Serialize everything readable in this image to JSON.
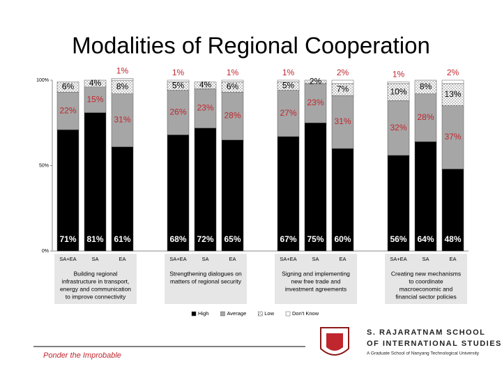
{
  "chart_data": {
    "type": "stacked_bar",
    "title": "Modalities of Regional Cooperation",
    "categories": [
      "SA+EA",
      "SA",
      "EA",
      "SA+EA",
      "SA",
      "EA",
      "SA+EA",
      "SA",
      "EA",
      "SA+EA",
      "SA",
      "EA"
    ],
    "groups": [
      [
        "Building regional",
        "infrastructure in transport,",
        "energy and communication",
        "to improve connectivity"
      ],
      [
        "Strengthening dialogues on",
        "matters of regional security"
      ],
      [
        "Signing and implementing",
        "new free trade and",
        "investment agreements"
      ],
      [
        "Creating new mechanisms",
        "to coordinate",
        "macroeconomic and",
        "financial sector policies"
      ]
    ],
    "series": [
      {
        "name": "High",
        "color": "#000000",
        "label_color": "#ffffff",
        "values": [
          71,
          81,
          61,
          68,
          72,
          65,
          67,
          75,
          60,
          56,
          64,
          48
        ],
        "value_labels": [
          "71%",
          "81%",
          "61%",
          "68%",
          "72%",
          "65%",
          "67%",
          "75%",
          "60%",
          "56%",
          "64%",
          "48%"
        ]
      },
      {
        "name": "Average",
        "color": "#a6a6a6",
        "label_color": "#c0262d",
        "values": [
          22,
          15,
          31,
          26,
          23,
          28,
          27,
          23,
          31,
          32,
          28,
          37
        ],
        "value_labels": [
          "22%",
          "15%",
          "31%",
          "26%",
          "23%",
          "28%",
          "27%",
          "23%",
          "31%",
          "32%",
          "28%",
          "37%"
        ]
      },
      {
        "name": "Low",
        "color": "#ffffff",
        "pattern": "dots",
        "label_color": "#000000",
        "values": [
          6,
          4,
          8,
          5,
          4,
          6,
          5,
          2,
          7,
          10,
          8,
          13
        ],
        "value_labels": [
          "6%",
          "4%",
          "8%",
          "5%",
          "4%",
          "6%",
          "5%",
          "2%",
          "7%",
          "10%",
          "8%",
          "13%"
        ]
      },
      {
        "name": "Don't Know",
        "color": "#ffffff",
        "label_color": "#c0262d",
        "values": [
          null,
          null,
          1,
          1,
          null,
          1,
          1,
          null,
          2,
          1,
          null,
          2
        ],
        "value_labels": [
          null,
          null,
          "1%",
          "1%",
          null,
          "1%",
          "1%",
          null,
          "2%",
          "1%",
          null,
          "2%"
        ]
      }
    ],
    "ylim": [
      0,
      100
    ],
    "yticks": [
      {
        "value": 0,
        "label": "0%"
      },
      {
        "value": 50,
        "label": "50%"
      },
      {
        "value": 100,
        "label": "100%"
      }
    ],
    "legend": "bottom"
  },
  "footer": "Ponder the Improbable",
  "logo": {
    "line1": "S. RAJARATNAM SCHOOL",
    "line2": "OF INTERNATIONAL STUDIES",
    "tagline": "A Graduate School of Nanyang Technological University"
  }
}
